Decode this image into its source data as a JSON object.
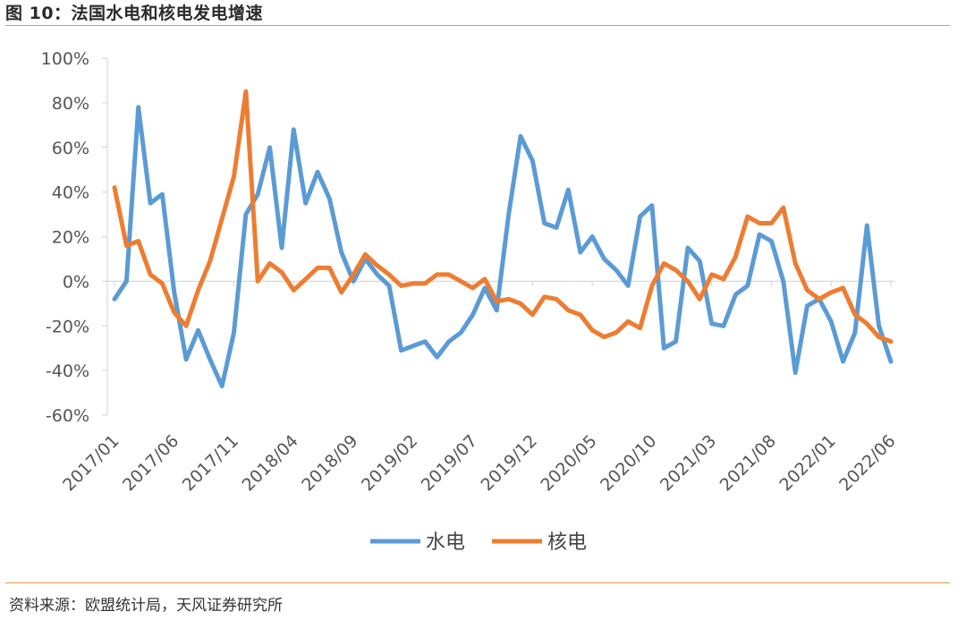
{
  "figure": {
    "title": "图 10：法国水电和核电发电增速",
    "source": "资料来源：欧盟统计局，天风证券研究所"
  },
  "colors": {
    "series_hydro": "#5b9bd5",
    "series_nuclear": "#ed7d31",
    "rule": "#e8954a",
    "axis": "#d9d9d9"
  },
  "chart_data": {
    "type": "line",
    "title": "",
    "xlabel": "",
    "ylabel": "",
    "ylim": [
      -60,
      100
    ],
    "yticks": [
      -60,
      -40,
      -20,
      0,
      20,
      40,
      60,
      80,
      100
    ],
    "ytick_labels": [
      "-60%",
      "-40%",
      "-20%",
      "0%",
      "20%",
      "40%",
      "60%",
      "80%",
      "100%"
    ],
    "x": [
      "2017/01",
      "2017/02",
      "2017/03",
      "2017/04",
      "2017/05",
      "2017/06",
      "2017/07",
      "2017/08",
      "2017/09",
      "2017/10",
      "2017/11",
      "2017/12",
      "2018/01",
      "2018/02",
      "2018/03",
      "2018/04",
      "2018/05",
      "2018/06",
      "2018/07",
      "2018/08",
      "2018/09",
      "2018/10",
      "2018/11",
      "2018/12",
      "2019/01",
      "2019/02",
      "2019/03",
      "2019/04",
      "2019/05",
      "2019/06",
      "2019/07",
      "2019/08",
      "2019/09",
      "2019/10",
      "2019/11",
      "2019/12",
      "2020/01",
      "2020/02",
      "2020/03",
      "2020/04",
      "2020/05",
      "2020/06",
      "2020/07",
      "2020/08",
      "2020/09",
      "2020/10",
      "2020/11",
      "2020/12",
      "2021/01",
      "2021/02",
      "2021/03",
      "2021/04",
      "2021/05",
      "2021/06",
      "2021/07",
      "2021/08",
      "2021/09",
      "2021/10",
      "2021/11",
      "2021/12",
      "2022/01",
      "2022/02",
      "2022/03",
      "2022/04",
      "2022/05",
      "2022/06"
    ],
    "xtick_labels": [
      "2017/01",
      "2017/06",
      "2017/11",
      "2018/04",
      "2018/09",
      "2019/02",
      "2019/07",
      "2019/12",
      "2020/05",
      "2020/10",
      "2021/03",
      "2021/08",
      "2022/01",
      "2022/06"
    ],
    "xtick_indices": [
      0,
      5,
      10,
      15,
      20,
      25,
      30,
      35,
      40,
      45,
      50,
      55,
      60,
      65
    ],
    "series": [
      {
        "name": "水电",
        "values": [
          -8,
          0,
          78,
          35,
          39,
          -5,
          -35,
          -22,
          -35,
          -47,
          -23,
          30,
          39,
          60,
          15,
          68,
          35,
          49,
          37,
          13,
          0,
          10,
          3,
          -2,
          -31,
          -29,
          -27,
          -34,
          -27,
          -23,
          -15,
          -3,
          -13,
          30,
          65,
          54,
          26,
          24,
          41,
          13,
          20,
          10,
          5,
          -2,
          29,
          34,
          -30,
          -27,
          15,
          9,
          -19,
          -20,
          -6,
          -2,
          21,
          18,
          0,
          -41,
          -11,
          -8,
          -18,
          -36,
          -23,
          25,
          -20,
          -36
        ]
      },
      {
        "name": "核电",
        "values": [
          42,
          16,
          18,
          3,
          -1,
          -14,
          -20,
          -4,
          9,
          28,
          47,
          85,
          0,
          8,
          4,
          -4,
          1,
          6,
          6,
          -5,
          3,
          12,
          7,
          3,
          -2,
          -1,
          -1,
          3,
          3,
          0,
          -3,
          1,
          -9,
          -8,
          -10,
          -15,
          -7,
          -8,
          -13,
          -15,
          -22,
          -25,
          -23,
          -18,
          -21,
          -2,
          8,
          5,
          0,
          -8,
          3,
          1,
          11,
          29,
          26,
          26,
          33,
          8,
          -4,
          -8,
          -5,
          -3,
          -15,
          -19,
          -25,
          -27
        ]
      }
    ],
    "legend_position": "bottom",
    "grid": false
  }
}
